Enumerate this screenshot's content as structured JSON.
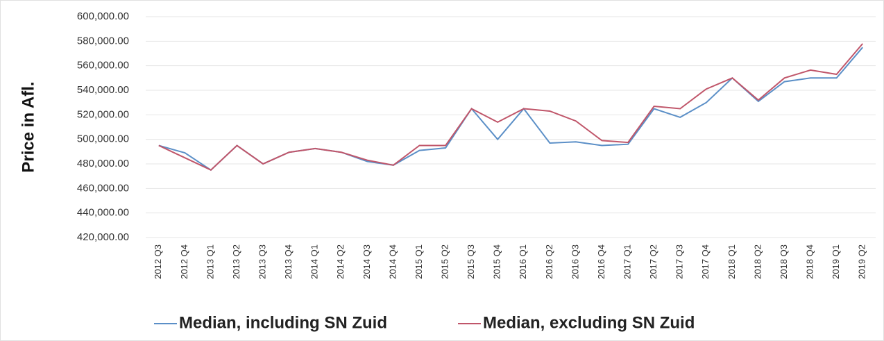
{
  "chart_data": {
    "type": "line",
    "y_label": "Price in Afl.",
    "categories": [
      "2012 Q3",
      "2012 Q4",
      "2013 Q1",
      "2013 Q2",
      "2013 Q3",
      "2013 Q4",
      "2014 Q1",
      "2014 Q2",
      "2014 Q3",
      "2014 Q4",
      "2015 Q1",
      "2015 Q2",
      "2015 Q3",
      "2015 Q4",
      "2016 Q1",
      "2016 Q2",
      "2016 Q3",
      "2016 Q4",
      "2017 Q1",
      "2017 Q2",
      "2017 Q3",
      "2017 Q4",
      "2018 Q1",
      "2018 Q2",
      "2018 Q3",
      "2018 Q4",
      "2019 Q1",
      "2019 Q2"
    ],
    "series": [
      {
        "name": "Median, including SN Zuid",
        "color": "#5b8fc7",
        "values": [
          495000,
          489000,
          475000,
          495000,
          480000,
          489500,
          492500,
          489500,
          482000,
          479000,
          491000,
          493000,
          525000,
          500000,
          525000,
          497000,
          498000,
          495000,
          496000,
          525000,
          518000,
          530000,
          550000,
          531000,
          547000,
          550000,
          550000,
          575000
        ]
      },
      {
        "name": "Median, excluding SN Zuid",
        "color": "#c0566a",
        "values": [
          495000,
          485000,
          475000,
          495000,
          480000,
          489500,
          492500,
          489500,
          483000,
          479000,
          495000,
          495000,
          525000,
          514000,
          525000,
          523000,
          515000,
          499000,
          497500,
          527000,
          525000,
          541000,
          550000,
          532000,
          550000,
          556500,
          553000,
          578000
        ]
      }
    ],
    "ylim": [
      420000,
      600000
    ],
    "yticks": [
      {
        "value": 420000,
        "label": "420,000.00"
      },
      {
        "value": 440000,
        "label": "440,000.00"
      },
      {
        "value": 460000,
        "label": "460,000.00"
      },
      {
        "value": 480000,
        "label": "480,000.00"
      },
      {
        "value": 500000,
        "label": "500,000.00"
      },
      {
        "value": 520000,
        "label": "520,000.00"
      },
      {
        "value": 540000,
        "label": "540,000.00"
      },
      {
        "value": 560000,
        "label": "560,000.00"
      },
      {
        "value": 580000,
        "label": "580,000.00"
      },
      {
        "value": 600000,
        "label": "600,000.00"
      }
    ],
    "grid": true,
    "legend": "bottom"
  }
}
